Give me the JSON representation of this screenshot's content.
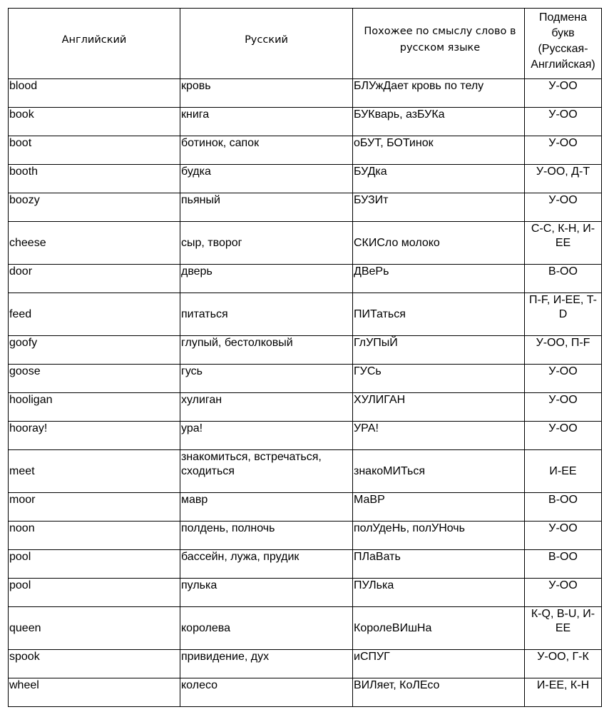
{
  "headers": {
    "english": "Английский",
    "russian": "Русский",
    "similar": "Похожее по смыслу слово в русском языке",
    "substitution_lines": [
      "Подмена",
      "букв",
      "(Русская-",
      "Английская)"
    ]
  },
  "rows": [
    {
      "en": "blood",
      "ru": "кровь",
      "similar": "БЛУжДает кровь по телу",
      "sub": "У-ОО"
    },
    {
      "en": "book",
      "ru": "книга",
      "similar": "БУКварь, азБУКа",
      "sub": "У-ОО"
    },
    {
      "en": "boot",
      "ru": "ботинок, сапок",
      "similar": "оБУТ, БОТинок",
      "sub": "У-ОО"
    },
    {
      "en": "booth",
      "ru": "будка",
      "similar": "БУДка",
      "sub": "У-ОО, Д-Т"
    },
    {
      "en": "boozy",
      "ru": "пьяный",
      "similar": "БУЗИт",
      "sub": "У-ОО"
    },
    {
      "en": "cheese",
      "ru": "сыр, творог",
      "similar": "СКИСло молоко",
      "sub": "С-С, К-Н, И-ЕЕ"
    },
    {
      "en": "door",
      "ru": "дверь",
      "similar": "ДВеРь",
      "sub": "В-ОО"
    },
    {
      "en": "feed",
      "ru": "питаться",
      "similar": "ПИТаться",
      "sub": "П-F, И-ЕЕ, T-D"
    },
    {
      "en": "goofy",
      "ru": "глупый, бестолковый",
      "similar": "ГлУПыЙ",
      "sub": "У-ОО, П-F"
    },
    {
      "en": "goose",
      "ru": "гусь",
      "similar": "ГУСь",
      "sub": "У-ОО"
    },
    {
      "en": "hooligan",
      "ru": "хулиган",
      "similar": "ХУЛИГАН",
      "sub": "У-ОО"
    },
    {
      "en": "hooray!",
      "ru": "ура!",
      "similar": "УРА!",
      "sub": "У-ОО"
    },
    {
      "en": "meet",
      "ru": "знакомиться, встречаться, сходиться",
      "similar": "знакоМИТься",
      "sub": "И-ЕЕ"
    },
    {
      "en": "moor",
      "ru": "мавр",
      "similar": "МаВР",
      "sub": "В-ОО"
    },
    {
      "en": "noon",
      "ru": "полдень, полночь",
      "similar": "полУдеНь, полУНочь",
      "sub": "У-ОО"
    },
    {
      "en": "pool",
      "ru": "бассейн, лужа, прудик",
      "similar": "ПЛаВать",
      "sub": "В-ОО"
    },
    {
      "en": "pool",
      "ru": "пулька",
      "similar": "ПУЛька",
      "sub": "У-ОО"
    },
    {
      "en": "queen",
      "ru": "королева",
      "similar": "КоролеВИшНа",
      "sub": "К-Q, В-U, И-ЕЕ"
    },
    {
      "en": "spook",
      "ru": "привидение, дух",
      "similar": "иСПУГ",
      "sub": "У-ОО, Г-К"
    },
    {
      "en": "wheel",
      "ru": "колесо",
      "similar": "ВИЛяет, КоЛЕсо",
      "sub": "И-ЕЕ, К-Н"
    }
  ]
}
